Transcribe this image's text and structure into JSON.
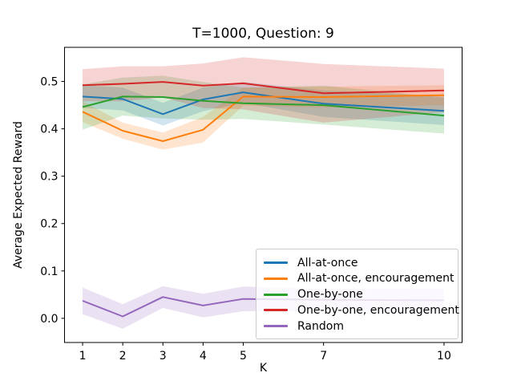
{
  "chart_data": {
    "type": "line",
    "title": "T=1000, Question: 9",
    "xlabel": "K",
    "ylabel": "Average Expected Reward",
    "x": [
      1,
      2,
      3,
      4,
      5,
      7,
      10
    ],
    "xlim": [
      0.55,
      10.45
    ],
    "ylim": [
      -0.051,
      0.572
    ],
    "grid": false,
    "band_opacity": 0.2,
    "legend_position": "lower right",
    "xticks": {
      "values": [
        1,
        2,
        3,
        4,
        5,
        7,
        10
      ],
      "labels": [
        "1",
        "2",
        "3",
        "4",
        "5",
        "7",
        "10"
      ]
    },
    "yticks": {
      "values": [
        0.0,
        0.1,
        0.2,
        0.3,
        0.4,
        0.5
      ],
      "labels": [
        "0.0",
        "0.1",
        "0.2",
        "0.3",
        "0.4",
        "0.5"
      ]
    },
    "series": [
      {
        "name": "All-at-once",
        "color": "#1f77b4",
        "values": [
          0.468,
          0.463,
          0.431,
          0.462,
          0.477,
          0.453,
          0.438
        ],
        "upper": [
          0.492,
          0.487,
          0.455,
          0.487,
          0.499,
          0.481,
          0.468
        ],
        "lower": [
          0.444,
          0.439,
          0.407,
          0.437,
          0.455,
          0.425,
          0.408
        ]
      },
      {
        "name": "All-at-once, encouragement",
        "color": "#ff7f0e",
        "values": [
          0.436,
          0.396,
          0.374,
          0.398,
          0.468,
          0.467,
          0.471
        ],
        "upper": [
          0.458,
          0.413,
          0.392,
          0.425,
          0.487,
          0.489,
          0.492
        ],
        "lower": [
          0.414,
          0.379,
          0.356,
          0.371,
          0.449,
          0.445,
          0.45
        ]
      },
      {
        "name": "One-by-one",
        "color": "#2ca02c",
        "values": [
          0.446,
          0.468,
          0.467,
          0.459,
          0.454,
          0.45,
          0.428
        ],
        "upper": [
          0.494,
          0.508,
          0.512,
          0.499,
          0.487,
          0.491,
          0.466
        ],
        "lower": [
          0.398,
          0.428,
          0.422,
          0.419,
          0.421,
          0.409,
          0.39
        ]
      },
      {
        "name": "One-by-one, encouragement",
        "color": "#d62728",
        "values": [
          0.492,
          0.495,
          0.499,
          0.491,
          0.496,
          0.475,
          0.481
        ],
        "upper": [
          0.526,
          0.532,
          0.532,
          0.538,
          0.551,
          0.537,
          0.527
        ],
        "lower": [
          0.458,
          0.458,
          0.466,
          0.444,
          0.441,
          0.413,
          0.435
        ]
      },
      {
        "name": "Random",
        "color": "#9467bd",
        "values": [
          0.037,
          0.004,
          0.045,
          0.027,
          0.041,
          0.039,
          0.038
        ],
        "upper": [
          0.065,
          0.03,
          0.068,
          0.052,
          0.067,
          0.062,
          0.063
        ],
        "lower": [
          0.009,
          -0.022,
          0.022,
          0.002,
          0.015,
          0.016,
          0.013
        ]
      }
    ]
  }
}
